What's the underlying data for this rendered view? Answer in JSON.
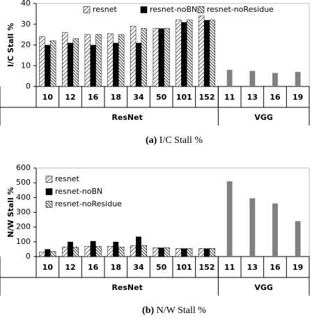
{
  "chart_data": [
    {
      "type": "bar",
      "ylabel": "I/C Stall %",
      "caption_label": "(a)",
      "caption": "I/C Stall %",
      "categories": [
        "10",
        "12",
        "16",
        "18",
        "34",
        "50",
        "101",
        "152",
        "11",
        "13",
        "16",
        "19"
      ],
      "groups": [
        {
          "label": "ResNet",
          "size": 8
        },
        {
          "label": "VGG",
          "size": 4
        }
      ],
      "series": [
        {
          "name": "resnet",
          "color": "#000000",
          "hatch": "sparse",
          "values": [
            24,
            26,
            25,
            25.5,
            29,
            28,
            32,
            34,
            null,
            null,
            null,
            null
          ]
        },
        {
          "name": "resnet-noBN",
          "color": "#000000",
          "hatch": "none",
          "values": [
            20,
            21,
            20,
            21,
            21,
            28,
            31,
            32,
            null,
            null,
            null,
            null
          ]
        },
        {
          "name": "resnet-noResidue",
          "color": "#000000",
          "hatch": "dense",
          "values": [
            22,
            23,
            25,
            25,
            28,
            28,
            32,
            32,
            null,
            null,
            null,
            null
          ]
        },
        {
          "color": "#808080",
          "hatch": "none",
          "values": [
            null,
            null,
            null,
            null,
            null,
            null,
            null,
            null,
            8,
            7.5,
            6.5,
            7
          ]
        }
      ],
      "ylim": [
        0,
        40
      ],
      "yticks": [
        0,
        10,
        20,
        30,
        40
      ],
      "grid": false,
      "legend": "top",
      "legend_layout": "row"
    },
    {
      "type": "bar",
      "ylabel": "N/W Stall %",
      "caption_label": "(b)",
      "caption": "N/W Stall %",
      "categories": [
        "10",
        "12",
        "16",
        "18",
        "34",
        "50",
        "101",
        "152",
        "11",
        "13",
        "16",
        "19"
      ],
      "groups": [
        {
          "label": "ResNet",
          "size": 8
        },
        {
          "label": "VGG",
          "size": 4
        }
      ],
      "series": [
        {
          "name": "resnet",
          "color": "#000000",
          "hatch": "sparse",
          "values": [
            30,
            65,
            70,
            70,
            75,
            60,
            55,
            55,
            null,
            null,
            null,
            null
          ]
        },
        {
          "name": "resnet-noBN",
          "color": "#000000",
          "hatch": "none",
          "values": [
            50,
            100,
            105,
            100,
            135,
            60,
            55,
            55,
            null,
            null,
            null,
            null
          ]
        },
        {
          "name": "resnet-noResidue",
          "color": "#000000",
          "hatch": "dense",
          "values": [
            35,
            65,
            70,
            65,
            75,
            60,
            55,
            55,
            null,
            null,
            null,
            null
          ]
        },
        {
          "color": "#808080",
          "hatch": "none",
          "values": [
            null,
            null,
            null,
            null,
            null,
            null,
            null,
            null,
            510,
            395,
            360,
            240
          ]
        }
      ],
      "ylim": [
        0,
        600
      ],
      "yticks": [
        0,
        100,
        200,
        300,
        400,
        500,
        600
      ],
      "grid": false,
      "legend": "upper left",
      "legend_layout": "column"
    }
  ]
}
